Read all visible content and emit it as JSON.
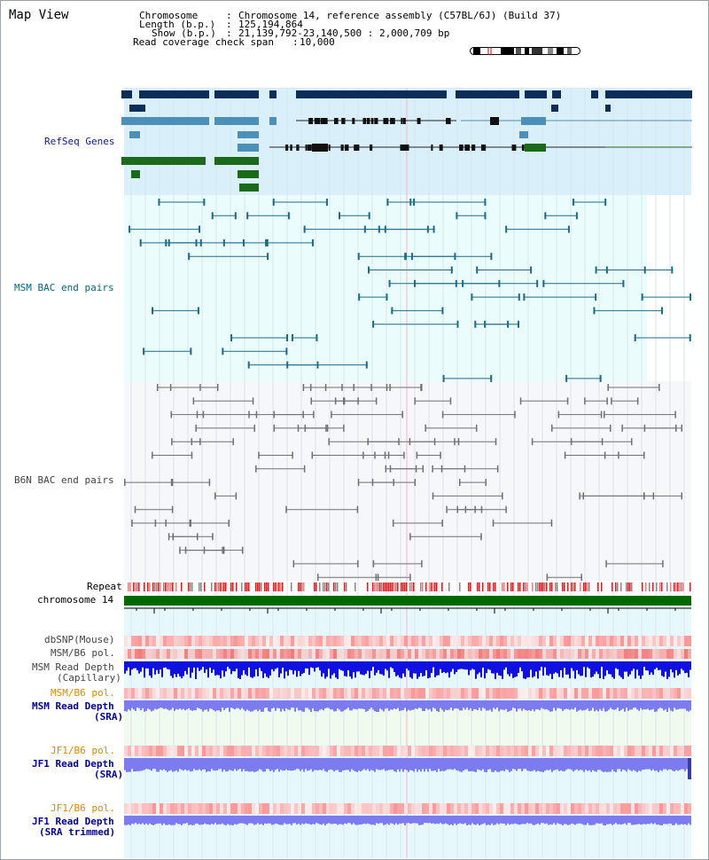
{
  "header": {
    "title": "Map View",
    "chromosome_label": "Chromosome",
    "chromosome_value": "Chromosome 14, reference assembly (C57BL/6J) (Build 37)",
    "length_label": "Length (b.p.)",
    "length_value": "125,194,864",
    "show_label": "Show (b.p.)",
    "show_value": "21,139,792-23,140,500 : 2,000,709 bp",
    "span_label": "Read coverage check span",
    "span_value": "10,000"
  },
  "tracks": {
    "refseq": "RefSeq Genes",
    "msm_bac": "MSM BAC end pairs",
    "b6n_bac": "B6N BAC end pairs",
    "repeat": "Repeat",
    "chromosome": "chromosome 14",
    "dbsnp": "dbSNP(Mouse)",
    "msm_b6_pol_1": "MSM/B6 pol.",
    "msm_depth_cap_1": "MSM Read Depth",
    "msm_depth_cap_2": "(Capillary)",
    "msm_b6_pol_2": "MSM/B6 pol.",
    "msm_depth_sra_1": "MSM Read Depth",
    "msm_depth_sra_2": "(SRA)",
    "jf1_b6_pol_1": "JF1/B6 pol.",
    "jf1_depth_sra_1": "JF1 Read Depth",
    "jf1_depth_sra_2": "(SRA)",
    "jf1_b6_pol_2": "JF1/B6 pol.",
    "jf1_depth_trim_1": "JF1 Read Depth",
    "jf1_depth_trim_2": "(SRA trimmed)"
  },
  "ruler": {
    "ticks": [
      "21200000",
      "21600000",
      "22000000",
      "22400000",
      "22800000"
    ]
  },
  "colors": {
    "refseq_bg": "#d9effa",
    "bac_bg": "#eafcfc",
    "b6n_bg": "#f5f7f9",
    "chromosome_bar": "#006a00",
    "navy_gene": "#0a2d5a",
    "steel_gene": "#4a90b8",
    "green_gene": "#1a6a1a",
    "msm_feature": "#1c6c88",
    "b6n_feature": "#707070",
    "depth_blue": "#1010e0",
    "depth_lightblue": "#7c7cf0"
  }
}
